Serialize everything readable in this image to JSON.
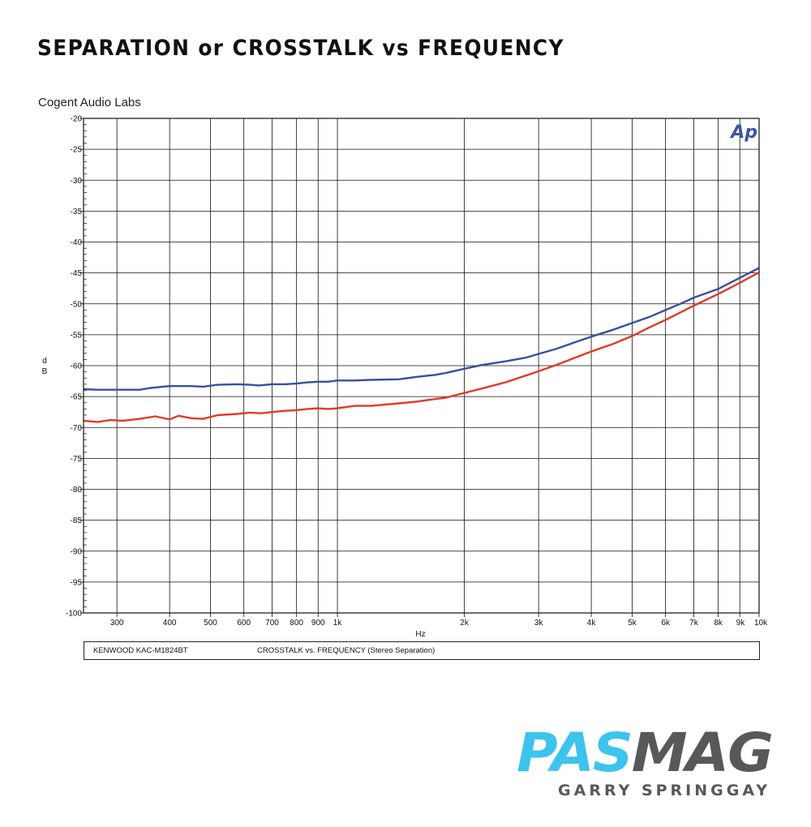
{
  "header": {
    "headline": "SEPARATION or CROSSTALK vs FREQUENCY",
    "company": "Cogent Audio Labs"
  },
  "chart_data": {
    "type": "line",
    "xscale": "log",
    "xlabel": "Hz",
    "ylabel": "dB",
    "xlim": [
      250,
      10000
    ],
    "ylim": [
      -100,
      -20
    ],
    "grid": true,
    "y_ticks": [
      -20,
      -25,
      -30,
      -35,
      -40,
      -45,
      -50,
      -55,
      -60,
      -65,
      -70,
      -75,
      -80,
      -85,
      -90,
      -95,
      -100
    ],
    "y_tick_labels": [
      "-20",
      "-25",
      "-30",
      "-35",
      "-40",
      "-45",
      "-50",
      "-55",
      "-60",
      "-65",
      "-70",
      "-75",
      "-80",
      "-85",
      "-90",
      "-95",
      "-100"
    ],
    "x_ticks": [
      300,
      400,
      500,
      600,
      700,
      800,
      900,
      1000,
      2000,
      3000,
      4000,
      5000,
      6000,
      7000,
      8000,
      9000,
      10000
    ],
    "x_tick_labels": [
      "300",
      "400",
      "500",
      "600",
      "700",
      "800",
      "900",
      "1k",
      "2k",
      "3k",
      "4k",
      "5k",
      "6k",
      "7k",
      "8k",
      "9k",
      "10k"
    ],
    "series": [
      {
        "color": "#3a4fa0",
        "x": [
          250,
          270,
          300,
          340,
          360,
          400,
          450,
          480,
          520,
          580,
          620,
          650,
          700,
          750,
          800,
          850,
          900,
          950,
          1000,
          1100,
          1200,
          1400,
          1550,
          1700,
          1800,
          2000,
          2200,
          2500,
          2800,
          3000,
          3300,
          3700,
          4000,
          4500,
          5000,
          5500,
          6000,
          6500,
          7000,
          8000,
          9000,
          10000
        ],
        "y": [
          -63.8,
          -63.9,
          -63.9,
          -63.9,
          -63.6,
          -63.3,
          -63.3,
          -63.4,
          -63.1,
          -63.0,
          -63.1,
          -63.2,
          -63.0,
          -63.0,
          -62.9,
          -62.7,
          -62.6,
          -62.6,
          -62.4,
          -62.4,
          -62.3,
          -62.2,
          -61.8,
          -61.5,
          -61.2,
          -60.5,
          -59.9,
          -59.3,
          -58.7,
          -58.1,
          -57.3,
          -56.1,
          -55.3,
          -54.2,
          -53.1,
          -52.1,
          -51.0,
          -50.0,
          -49.0,
          -47.6,
          -45.8,
          -44.2
        ]
      },
      {
        "color": "#e03a2a",
        "x": [
          250,
          270,
          290,
          310,
          340,
          370,
          400,
          420,
          450,
          480,
          520,
          580,
          620,
          660,
          700,
          750,
          800,
          850,
          900,
          950,
          1000,
          1100,
          1200,
          1400,
          1550,
          1700,
          1800,
          2000,
          2200,
          2500,
          2800,
          3000,
          3300,
          3700,
          4000,
          4500,
          5000,
          5500,
          6000,
          6500,
          7000,
          8000,
          9000,
          10000
        ],
        "y": [
          -68.9,
          -69.1,
          -68.8,
          -68.9,
          -68.6,
          -68.2,
          -68.7,
          -68.1,
          -68.5,
          -68.6,
          -68.0,
          -67.8,
          -67.6,
          -67.7,
          -67.5,
          -67.3,
          -67.2,
          -67.0,
          -66.9,
          -67.0,
          -66.9,
          -66.5,
          -66.5,
          -66.1,
          -65.8,
          -65.4,
          -65.2,
          -64.4,
          -63.7,
          -62.7,
          -61.6,
          -60.9,
          -59.9,
          -58.6,
          -57.7,
          -56.5,
          -55.2,
          -53.8,
          -52.6,
          -51.4,
          -50.3,
          -48.4,
          -46.6,
          -44.9
        ]
      }
    ],
    "logo_text": "Ap"
  },
  "footer": {
    "device": "KENWOOD  KAC-M1824BT",
    "description": "CROSSTALK vs. FREQUENCY  (Stereo Separation)"
  },
  "branding": {
    "brand_part1": "PAS",
    "brand_part2": "MAG",
    "author": "GARRY SPRINGGAY"
  }
}
